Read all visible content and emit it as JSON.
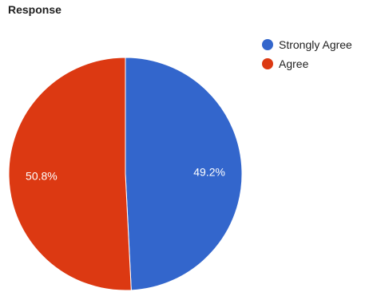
{
  "chart_data": {
    "type": "pie",
    "title": "Response",
    "legend_position": "right",
    "series": [
      {
        "name": "Strongly Agree",
        "value": 49.2,
        "label": "49.2%",
        "color": "#3366cc"
      },
      {
        "name": "Agree",
        "value": 50.8,
        "label": "50.8%",
        "color": "#dc3912"
      }
    ]
  }
}
